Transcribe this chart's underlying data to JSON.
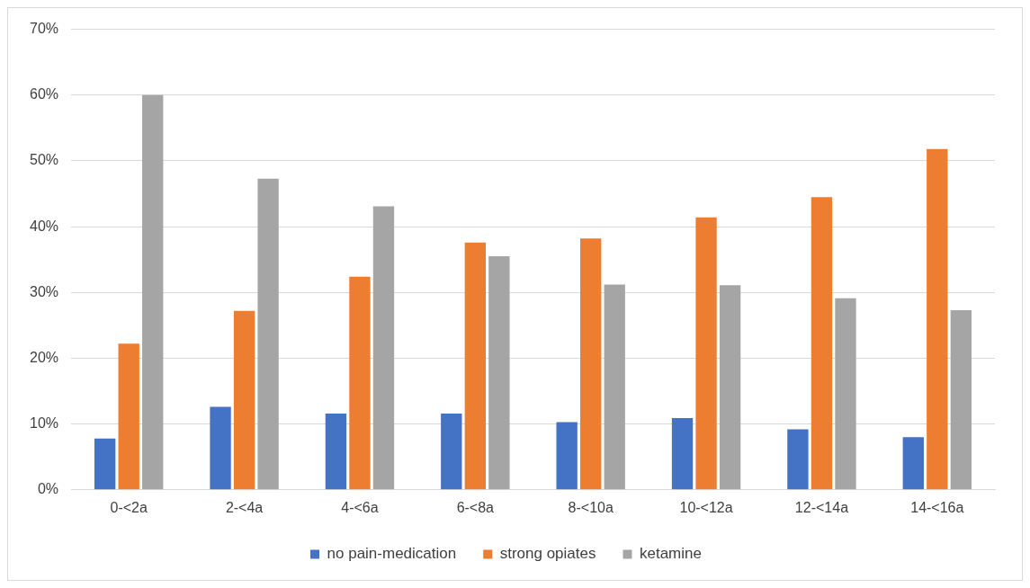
{
  "chart_data": {
    "type": "bar",
    "categories": [
      "0-<2a",
      "2-<4a",
      "4-<6a",
      "6-<8a",
      "8-<10a",
      "10-<12a",
      "12-<14a",
      "14-<16a"
    ],
    "series": [
      {
        "name": "no pain-medication",
        "color": "#4472c4",
        "values": [
          7.8,
          12.6,
          11.6,
          11.6,
          10.3,
          10.9,
          9.2,
          8.0
        ]
      },
      {
        "name": "strong opiates",
        "color": "#ed7d31",
        "values": [
          22.2,
          27.2,
          32.4,
          37.6,
          38.2,
          41.4,
          44.5,
          51.8
        ]
      },
      {
        "name": "ketamine",
        "color": "#a5a5a5",
        "values": [
          60.0,
          47.3,
          43.1,
          35.5,
          31.2,
          31.1,
          29.1,
          27.3
        ]
      }
    ],
    "ylim": [
      0,
      70
    ],
    "yticks": [
      {
        "value": 0,
        "label": "0%"
      },
      {
        "value": 10,
        "label": "10%"
      },
      {
        "value": 20,
        "label": "20%"
      },
      {
        "value": 30,
        "label": "30%"
      },
      {
        "value": 40,
        "label": "40%"
      },
      {
        "value": 50,
        "label": "50%"
      },
      {
        "value": 60,
        "label": "60%"
      },
      {
        "value": 70,
        "label": "70%"
      }
    ],
    "grid": "y",
    "legend": "bottom"
  }
}
